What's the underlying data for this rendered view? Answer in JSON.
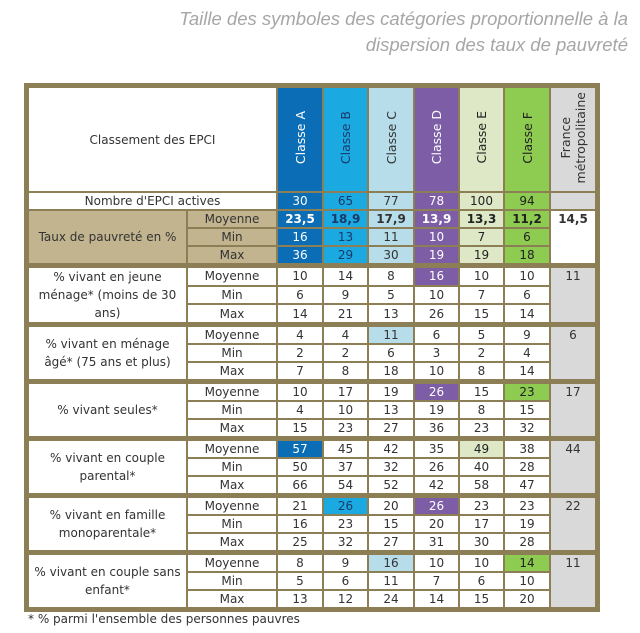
{
  "title": [
    "Taille des symboles des catégories proportionnelle à la",
    "dispersion des taux de pauvreté"
  ],
  "header": {
    "label": "Classement des EPCI",
    "classes": [
      "Classe A",
      "Classe B",
      "Classe C",
      "Classe D",
      "Classe E",
      "Classe F"
    ],
    "france": [
      "France",
      "métropolitaine"
    ]
  },
  "colors": {
    "bg": [
      "#0b6db5",
      "#1aa9e0",
      "#b6dde9",
      "#7c5da6",
      "#dee8c6",
      "#8dcc50"
    ],
    "fg": [
      "#ffffff",
      "#1a3a6a",
      "#333333",
      "#ffffff",
      "#222222",
      "#222222"
    ],
    "france": "#d9d9d9",
    "tan": "#c2b48f",
    "border": "#8c7f55"
  },
  "nombre": {
    "label": "Nombre d'EPCI actives",
    "values": [
      "30",
      "65",
      "77",
      "78",
      "100",
      "94"
    ]
  },
  "blocks": [
    {
      "label": "Taux de pauvreté en %",
      "france": "14,5",
      "full": true,
      "rows": [
        {
          "label": "Moyenne",
          "values": [
            "23,5",
            "18,9",
            "17,9",
            "13,9",
            "13,3",
            "11,2"
          ],
          "bold": true
        },
        {
          "label": "Min",
          "values": [
            "16",
            "13",
            "11",
            "10",
            "7",
            "6"
          ]
        },
        {
          "label": "Max",
          "values": [
            "36",
            "29",
            "30",
            "19",
            "19",
            "18"
          ]
        }
      ]
    },
    {
      "label": "% vivant en jeune ménage* (moins de 30 ans)",
      "france": "11",
      "rows": [
        {
          "label": "Moyenne",
          "values": [
            "10",
            "14",
            "8",
            "16",
            "10",
            "10"
          ],
          "highlight": [
            3
          ]
        },
        {
          "label": "Min",
          "values": [
            "6",
            "9",
            "5",
            "10",
            "7",
            "6"
          ]
        },
        {
          "label": "Max",
          "values": [
            "14",
            "21",
            "13",
            "26",
            "15",
            "14"
          ]
        }
      ]
    },
    {
      "label": "% vivant en ménage âgé* (75 ans et plus)",
      "france": "6",
      "rows": [
        {
          "label": "Moyenne",
          "values": [
            "4",
            "4",
            "11",
            "6",
            "5",
            "9"
          ],
          "highlight": [
            2
          ]
        },
        {
          "label": "Min",
          "values": [
            "2",
            "2",
            "6",
            "3",
            "2",
            "4"
          ]
        },
        {
          "label": "Max",
          "values": [
            "7",
            "8",
            "18",
            "10",
            "8",
            "14"
          ]
        }
      ]
    },
    {
      "label": "% vivant seules*",
      "france": "17",
      "rows": [
        {
          "label": "Moyenne",
          "values": [
            "10",
            "17",
            "19",
            "26",
            "15",
            "23"
          ],
          "highlight": [
            3,
            5
          ]
        },
        {
          "label": "Min",
          "values": [
            "4",
            "10",
            "13",
            "19",
            "8",
            "15"
          ]
        },
        {
          "label": "Max",
          "values": [
            "15",
            "23",
            "27",
            "36",
            "23",
            "32"
          ]
        }
      ]
    },
    {
      "label": "% vivant en couple parental*",
      "france": "44",
      "rows": [
        {
          "label": "Moyenne",
          "values": [
            "57",
            "45",
            "42",
            "35",
            "49",
            "38"
          ],
          "highlight": [
            0,
            4
          ]
        },
        {
          "label": "Min",
          "values": [
            "50",
            "37",
            "32",
            "26",
            "40",
            "28"
          ]
        },
        {
          "label": "Max",
          "values": [
            "66",
            "54",
            "52",
            "42",
            "58",
            "47"
          ]
        }
      ]
    },
    {
      "label": "% vivant en famille monoparentale*",
      "france": "22",
      "rows": [
        {
          "label": "Moyenne",
          "values": [
            "21",
            "26",
            "20",
            "26",
            "23",
            "23"
          ],
          "highlight": [
            1,
            3
          ]
        },
        {
          "label": "Min",
          "values": [
            "16",
            "23",
            "15",
            "20",
            "17",
            "19"
          ]
        },
        {
          "label": "Max",
          "values": [
            "25",
            "32",
            "27",
            "31",
            "30",
            "28"
          ]
        }
      ]
    },
    {
      "label": "% vivant en couple sans enfant*",
      "france": "11",
      "rows": [
        {
          "label": "Moyenne",
          "values": [
            "8",
            "9",
            "16",
            "10",
            "10",
            "14"
          ],
          "highlight": [
            2,
            5
          ]
        },
        {
          "label": "Min",
          "values": [
            "5",
            "6",
            "11",
            "7",
            "6",
            "10"
          ]
        },
        {
          "label": "Max",
          "values": [
            "13",
            "12",
            "24",
            "14",
            "15",
            "20"
          ]
        }
      ]
    }
  ],
  "footnote": "* % parmi l'ensemble des personnes pauvres"
}
